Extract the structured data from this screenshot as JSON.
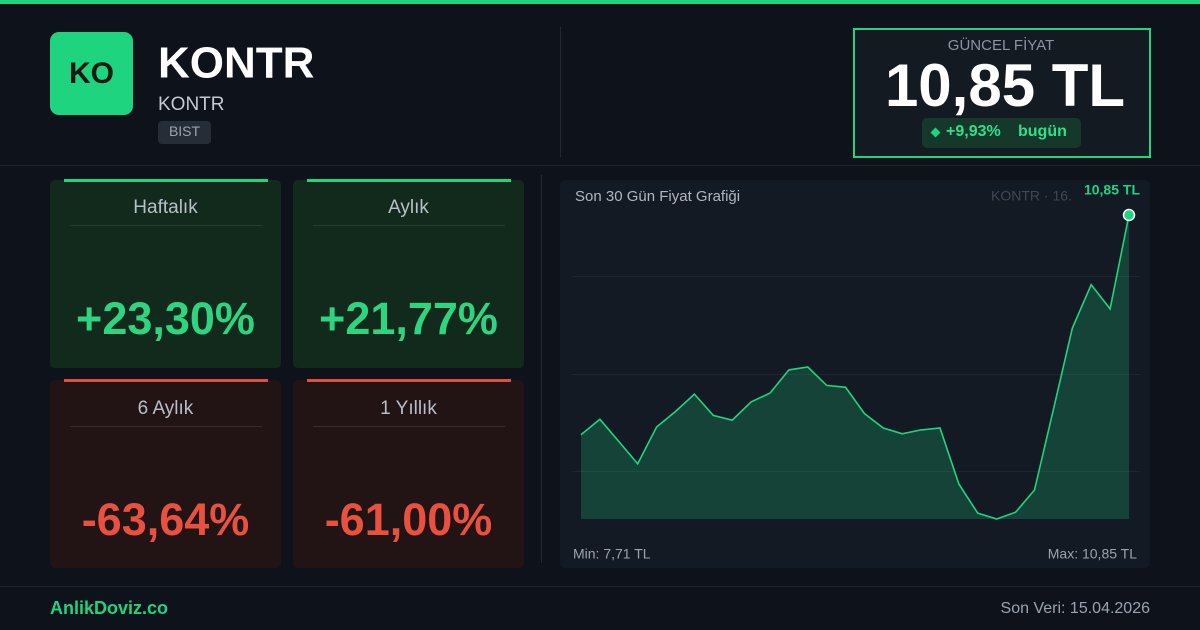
{
  "header": {
    "logo": "KO",
    "title": "KONTR",
    "subtitle": "KONTR",
    "exchange": "BIST"
  },
  "price": {
    "label": "GÜNCEL FİYAT",
    "value": "10,85 TL",
    "change": "+9,93%",
    "change_suffix": "bugün"
  },
  "cards": [
    {
      "label": "Haftalık",
      "value": "+23,30%"
    },
    {
      "label": "Aylık",
      "value": "+21,77%"
    },
    {
      "label": "6 Aylık",
      "value": "-63,64%"
    },
    {
      "label": "1 Yıllık",
      "value": "-61,00%"
    }
  ],
  "chart_data": {
    "type": "area",
    "title": "Son 30 Gün Fiyat Grafiği",
    "watermark": "KONTR · 16.",
    "values": [
      8.58,
      8.74,
      8.51,
      8.28,
      8.66,
      8.82,
      9.0,
      8.78,
      8.73,
      8.92,
      9.01,
      9.25,
      9.28,
      9.09,
      9.07,
      8.8,
      8.65,
      8.59,
      8.63,
      8.65,
      8.07,
      7.77,
      7.71,
      7.78,
      8.01,
      8.84,
      9.68,
      10.13,
      9.88,
      10.85
    ],
    "ylim": [
      7.71,
      10.85
    ],
    "color": "#1ed47f",
    "last_value_label": "10,85 TL",
    "min_label": "Min: 7,71 TL",
    "max_label": "Max: 10,85 TL"
  },
  "footer": {
    "brand": "AnlikDoviz.co",
    "updated": "Son Veri: 15.04.2026"
  }
}
